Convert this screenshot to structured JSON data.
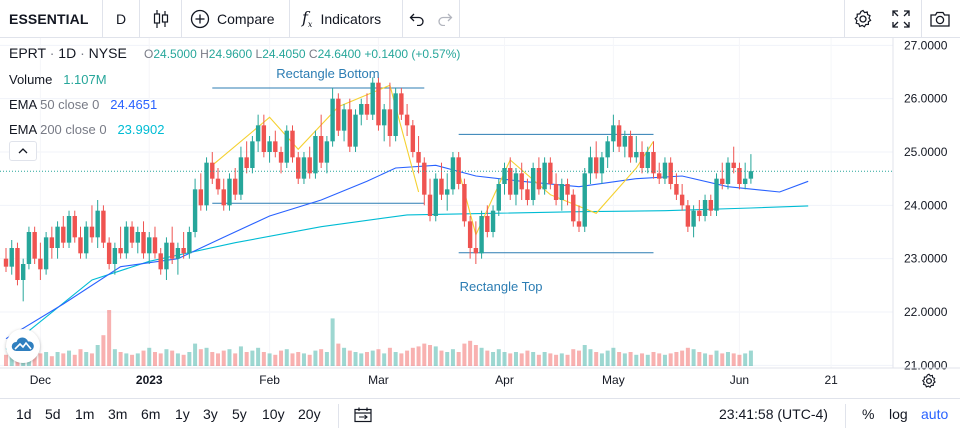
{
  "toolbar": {
    "symbol": "ESSENTIAL",
    "interval": "D",
    "compare_label": "Compare",
    "indicators_label": "Indicators",
    "icons": [
      "candles-icon",
      "plus-circle-icon",
      "fx-icon",
      "undo-icon",
      "redo-icon",
      "gear-icon",
      "fullscreen-icon",
      "camera-icon"
    ]
  },
  "legend": {
    "ticker": "EPRT",
    "interval": "1D",
    "exchange": "NYSE",
    "o_label": "O",
    "o_value": "24.5000",
    "h_label": "H",
    "h_value": "24.9600",
    "l_label": "L",
    "l_value": "24.4050",
    "c_label": "C",
    "c_value": "24.6400",
    "change": "+0.1400 (+0.57%)",
    "volume_label": "Volume",
    "volume_value": "1.107M",
    "ema50_label": "EMA",
    "ema50_params": "50 close 0",
    "ema50_value": "24.4651",
    "ema200_label": "EMA",
    "ema200_params": "200 close 0",
    "ema200_value": "23.9902"
  },
  "annotations": {
    "rect_bottom_label": "Rectangle Bottom",
    "rect_top_label": "Rectangle Top"
  },
  "bottom": {
    "ranges": [
      "1d",
      "5d",
      "1m",
      "3m",
      "6m",
      "1y",
      "3y",
      "5y",
      "10y",
      "20y"
    ],
    "clock": "23:41:58 (UTC-4)",
    "percent_label": "%",
    "log_label": "log",
    "auto_label": "auto"
  },
  "colors": {
    "up": "#26a69a",
    "down": "#ef5350",
    "ema50": "#2962ff",
    "ema200": "#00bcd4",
    "pattern": "#f5d131",
    "rectangle": "#2c7db3",
    "price_label_bg": "#26a69a"
  },
  "chart_data": {
    "type": "candlestick",
    "y_axis": {
      "ticks": [
        27,
        26,
        25,
        24,
        23,
        22,
        21
      ],
      "tick_labels": [
        "27.0000",
        "26.0000",
        "25.0000",
        "24.0000",
        "23.0000",
        "22.0000",
        "21.0000"
      ],
      "range": [
        20.95,
        27.1
      ],
      "last_price": 24.64,
      "last_price_label": "24.6400"
    },
    "x_axis": {
      "labels": [
        "Dec",
        "2023",
        "Feb",
        "Mar",
        "Apr",
        "May",
        "Jun",
        "21"
      ],
      "label_bar_index": [
        6,
        25,
        46,
        65,
        87,
        106,
        128,
        144
      ]
    },
    "rectangles": [
      {
        "label": "Rectangle Bottom",
        "from_bar": 36,
        "to_bar": 73,
        "top": 26.2,
        "bottom": 24.04
      },
      {
        "label": "Rectangle Top",
        "from_bar": 79,
        "to_bar": 113,
        "top": 25.33,
        "bottom": 23.11
      }
    ],
    "pattern_lines": [
      [
        [
          36,
          24.75
        ],
        [
          46,
          25.65
        ],
        [
          51,
          25.05
        ],
        [
          58,
          25.85
        ],
        [
          67,
          26.25
        ],
        [
          72,
          24.25
        ]
      ],
      [
        [
          79,
          24.65
        ],
        [
          82,
          23.45
        ],
        [
          88,
          24.85
        ],
        [
          95,
          24.2
        ],
        [
          103,
          23.85
        ],
        [
          110,
          24.7
        ],
        [
          113,
          25.2
        ]
      ]
    ],
    "ema50": [
      [
        0,
        21.5
      ],
      [
        10,
        22.15
      ],
      [
        20,
        22.85
      ],
      [
        30,
        23.0
      ],
      [
        38,
        23.4
      ],
      [
        46,
        23.8
      ],
      [
        55,
        24.1
      ],
      [
        63,
        24.45
      ],
      [
        68,
        24.7
      ],
      [
        75,
        24.75
      ],
      [
        82,
        24.55
      ],
      [
        90,
        24.45
      ],
      [
        100,
        24.35
      ],
      [
        110,
        24.5
      ],
      [
        118,
        24.55
      ],
      [
        126,
        24.35
      ],
      [
        135,
        24.25
      ],
      [
        140,
        24.45
      ]
    ],
    "ema200": [
      [
        0,
        21.3
      ],
      [
        15,
        22.6
      ],
      [
        25,
        22.95
      ],
      [
        40,
        23.3
      ],
      [
        55,
        23.6
      ],
      [
        70,
        23.82
      ],
      [
        85,
        23.85
      ],
      [
        100,
        23.88
      ],
      [
        115,
        23.9
      ],
      [
        130,
        23.95
      ],
      [
        140,
        23.99
      ]
    ],
    "candles_ohlc_volume": [
      [
        23.0,
        23.2,
        22.75,
        22.85,
        0.8
      ],
      [
        22.85,
        23.35,
        22.7,
        23.2,
        0.9
      ],
      [
        23.2,
        23.3,
        22.5,
        22.6,
        1.1
      ],
      [
        22.6,
        23.0,
        22.2,
        22.9,
        1.0
      ],
      [
        22.9,
        23.6,
        22.8,
        23.5,
        1.3
      ],
      [
        23.5,
        23.6,
        22.9,
        23.0,
        0.8
      ],
      [
        23.0,
        23.3,
        22.6,
        22.8,
        0.9
      ],
      [
        22.8,
        23.5,
        22.7,
        23.4,
        1.0
      ],
      [
        23.4,
        23.6,
        23.0,
        23.2,
        0.7
      ],
      [
        23.2,
        23.7,
        23.0,
        23.6,
        1.0
      ],
      [
        23.6,
        23.8,
        23.2,
        23.3,
        0.9
      ],
      [
        23.3,
        23.9,
        23.2,
        23.8,
        1.1
      ],
      [
        23.8,
        23.9,
        23.3,
        23.4,
        0.8
      ],
      [
        23.4,
        23.6,
        23.0,
        23.1,
        1.2
      ],
      [
        23.1,
        23.7,
        23.0,
        23.6,
        1.0
      ],
      [
        23.6,
        24.0,
        23.3,
        23.4,
        0.9
      ],
      [
        23.4,
        24.1,
        23.2,
        23.9,
        1.5
      ],
      [
        23.9,
        24.0,
        23.2,
        23.3,
        2.2
      ],
      [
        23.3,
        23.4,
        22.8,
        22.9,
        4.0
      ],
      [
        22.9,
        23.3,
        22.7,
        23.2,
        1.2
      ],
      [
        23.2,
        23.6,
        23.0,
        23.1,
        1.0
      ],
      [
        23.1,
        23.7,
        23.0,
        23.6,
        0.9
      ],
      [
        23.6,
        23.7,
        23.2,
        23.3,
        0.8
      ],
      [
        23.3,
        23.6,
        23.1,
        23.5,
        0.9
      ],
      [
        23.5,
        23.7,
        23.0,
        23.1,
        1.1
      ],
      [
        23.1,
        23.5,
        22.9,
        23.4,
        1.3
      ],
      [
        23.4,
        23.6,
        23.0,
        23.1,
        1.0
      ],
      [
        23.1,
        23.2,
        22.7,
        22.8,
        0.9
      ],
      [
        22.8,
        23.4,
        22.6,
        23.3,
        1.2
      ],
      [
        23.3,
        23.6,
        22.9,
        23.0,
        1.1
      ],
      [
        23.0,
        23.3,
        22.7,
        23.2,
        0.9
      ],
      [
        23.2,
        23.5,
        23.0,
        23.1,
        0.8
      ],
      [
        23.1,
        23.6,
        23.0,
        23.5,
        1.0
      ],
      [
        23.5,
        24.5,
        23.4,
        24.3,
        1.6
      ],
      [
        24.3,
        24.6,
        23.9,
        24.0,
        1.2
      ],
      [
        24.0,
        24.9,
        23.9,
        24.8,
        1.3
      ],
      [
        24.8,
        25.0,
        24.4,
        24.5,
        1.0
      ],
      [
        24.5,
        24.7,
        24.2,
        24.3,
        0.9
      ],
      [
        24.3,
        24.5,
        23.9,
        24.0,
        1.1
      ],
      [
        24.0,
        24.6,
        23.9,
        24.5,
        1.2
      ],
      [
        24.5,
        24.7,
        24.1,
        24.2,
        0.9
      ],
      [
        24.2,
        25.1,
        24.1,
        24.9,
        1.4
      ],
      [
        24.9,
        25.2,
        24.6,
        24.7,
        1.0
      ],
      [
        24.7,
        25.3,
        24.6,
        25.2,
        1.1
      ],
      [
        25.2,
        25.7,
        25.0,
        25.5,
        1.3
      ],
      [
        25.5,
        25.7,
        24.9,
        25.0,
        1.0
      ],
      [
        25.0,
        25.3,
        24.8,
        25.2,
        0.9
      ],
      [
        25.2,
        25.4,
        24.9,
        25.0,
        0.8
      ],
      [
        25.0,
        25.1,
        24.6,
        24.8,
        1.1
      ],
      [
        24.8,
        25.5,
        24.7,
        25.4,
        1.2
      ],
      [
        25.4,
        25.5,
        24.8,
        24.9,
        0.9
      ],
      [
        24.9,
        25.0,
        24.4,
        24.5,
        1.0
      ],
      [
        24.5,
        25.0,
        24.4,
        24.9,
        0.9
      ],
      [
        24.9,
        25.1,
        24.5,
        24.6,
        0.8
      ],
      [
        24.6,
        25.4,
        24.5,
        25.3,
        1.1
      ],
      [
        25.3,
        25.7,
        24.7,
        24.8,
        1.2
      ],
      [
        24.8,
        25.3,
        24.6,
        25.2,
        1.0
      ],
      [
        25.2,
        26.2,
        25.1,
        26.0,
        3.4
      ],
      [
        26.0,
        26.1,
        25.3,
        25.4,
        1.6
      ],
      [
        25.4,
        25.9,
        25.2,
        25.8,
        1.3
      ],
      [
        25.8,
        26.0,
        25.0,
        25.1,
        1.1
      ],
      [
        25.1,
        25.8,
        25.0,
        25.7,
        1.0
      ],
      [
        25.7,
        26.0,
        25.5,
        25.9,
        0.9
      ],
      [
        25.9,
        26.1,
        25.6,
        25.7,
        1.0
      ],
      [
        25.7,
        26.4,
        25.6,
        26.3,
        1.1
      ],
      [
        26.3,
        26.4,
        25.4,
        25.5,
        1.2
      ],
      [
        25.5,
        25.9,
        25.2,
        25.8,
        0.9
      ],
      [
        25.8,
        26.3,
        25.1,
        25.3,
        1.3
      ],
      [
        25.3,
        26.2,
        25.2,
        26.1,
        1.0
      ],
      [
        26.1,
        26.2,
        25.6,
        25.7,
        0.9
      ],
      [
        25.7,
        25.9,
        25.3,
        25.5,
        1.1
      ],
      [
        25.5,
        25.6,
        24.9,
        25.0,
        1.3
      ],
      [
        25.0,
        25.3,
        24.6,
        24.8,
        1.4
      ],
      [
        24.8,
        24.9,
        24.0,
        24.2,
        1.6
      ],
      [
        24.2,
        24.5,
        23.7,
        23.8,
        1.5
      ],
      [
        23.8,
        24.6,
        23.7,
        24.5,
        1.4
      ],
      [
        24.5,
        24.8,
        24.1,
        24.2,
        1.1
      ],
      [
        24.2,
        24.6,
        23.9,
        24.3,
        1.0
      ],
      [
        24.3,
        25.0,
        24.2,
        24.9,
        1.2
      ],
      [
        24.9,
        25.0,
        24.3,
        24.4,
        1.0
      ],
      [
        24.4,
        24.5,
        23.6,
        23.7,
        1.6
      ],
      [
        23.7,
        23.8,
        23.0,
        23.2,
        1.8
      ],
      [
        23.2,
        23.7,
        22.9,
        23.1,
        1.5
      ],
      [
        23.1,
        23.9,
        23.0,
        23.8,
        1.3
      ],
      [
        23.8,
        24.0,
        23.4,
        23.5,
        1.1
      ],
      [
        23.5,
        24.0,
        23.4,
        23.9,
        1.0
      ],
      [
        23.9,
        24.5,
        23.8,
        24.4,
        1.2
      ],
      [
        24.4,
        24.8,
        24.2,
        24.7,
        1.0
      ],
      [
        24.7,
        24.9,
        24.1,
        24.2,
        0.9
      ],
      [
        24.2,
        24.7,
        24.0,
        24.6,
        1.0
      ],
      [
        24.6,
        24.8,
        24.1,
        24.3,
        0.9
      ],
      [
        24.3,
        24.5,
        24.0,
        24.1,
        1.1
      ],
      [
        24.1,
        24.8,
        24.0,
        24.7,
        1.0
      ],
      [
        24.7,
        24.9,
        24.2,
        24.3,
        0.8
      ],
      [
        24.3,
        24.9,
        24.2,
        24.8,
        1.0
      ],
      [
        24.8,
        24.9,
        24.3,
        24.4,
        0.9
      ],
      [
        24.4,
        24.6,
        24.0,
        24.1,
        0.8
      ],
      [
        24.1,
        24.5,
        23.9,
        24.4,
        0.9
      ],
      [
        24.4,
        24.5,
        24.0,
        24.2,
        0.8
      ],
      [
        24.2,
        24.3,
        23.6,
        23.7,
        1.2
      ],
      [
        23.7,
        24.0,
        23.5,
        23.6,
        1.1
      ],
      [
        23.6,
        24.7,
        23.5,
        24.6,
        1.5
      ],
      [
        24.6,
        25.1,
        24.4,
        24.9,
        1.2
      ],
      [
        24.9,
        25.2,
        24.5,
        24.6,
        1.0
      ],
      [
        24.6,
        25.0,
        24.4,
        24.9,
        0.9
      ],
      [
        24.9,
        25.3,
        24.7,
        25.2,
        1.1
      ],
      [
        25.2,
        25.7,
        25.0,
        25.5,
        1.3
      ],
      [
        25.5,
        25.6,
        25.0,
        25.1,
        1.0
      ],
      [
        25.1,
        25.4,
        24.9,
        25.3,
        0.9
      ],
      [
        25.3,
        25.4,
        24.8,
        24.9,
        1.0
      ],
      [
        24.9,
        25.3,
        24.8,
        25.0,
        0.8
      ],
      [
        25.0,
        25.2,
        24.6,
        24.7,
        0.9
      ],
      [
        24.7,
        25.1,
        24.6,
        25.0,
        0.8
      ],
      [
        25.0,
        25.2,
        24.5,
        24.6,
        1.0
      ],
      [
        24.6,
        24.8,
        24.4,
        24.5,
        0.9
      ],
      [
        24.5,
        24.9,
        24.4,
        24.8,
        0.8
      ],
      [
        24.8,
        24.9,
        24.3,
        24.4,
        0.9
      ],
      [
        24.4,
        24.6,
        24.1,
        24.2,
        1.0
      ],
      [
        24.2,
        24.4,
        23.9,
        24.0,
        1.1
      ],
      [
        24.0,
        24.1,
        23.5,
        23.6,
        1.3
      ],
      [
        23.6,
        24.0,
        23.4,
        23.9,
        1.2
      ],
      [
        23.9,
        24.1,
        23.7,
        23.8,
        1.0
      ],
      [
        23.8,
        24.2,
        23.7,
        24.1,
        0.9
      ],
      [
        24.1,
        24.2,
        23.8,
        23.9,
        0.8
      ],
      [
        23.9,
        24.6,
        23.8,
        24.5,
        1.1
      ],
      [
        24.5,
        24.8,
        24.3,
        24.4,
        0.9
      ],
      [
        24.4,
        24.9,
        24.3,
        24.8,
        1.0
      ],
      [
        24.8,
        25.1,
        24.6,
        24.7,
        0.9
      ],
      [
        24.7,
        24.8,
        24.3,
        24.4,
        0.8
      ],
      [
        24.4,
        24.8,
        24.3,
        24.5,
        0.9
      ],
      [
        24.5,
        24.96,
        24.405,
        24.64,
        1.1
      ]
    ]
  }
}
